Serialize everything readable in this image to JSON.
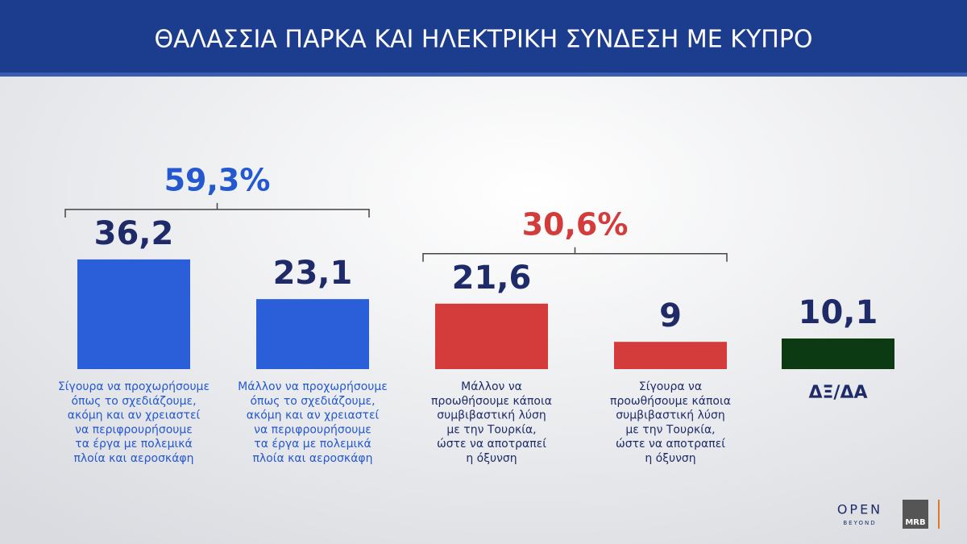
{
  "header": {
    "title": "ΘΑΛΑΣΣΙΑ ΠΑΡΚΑ ΚΑΙ ΗΛΕΚΤΡΙΚΗ ΣΥΝΔΕΣΗ ΜΕ ΚΥΠΡΟ"
  },
  "chart_data": {
    "type": "bar",
    "categories": [
      [
        "Σίγουρα να προχωρήσουμε",
        "όπως το σχεδιάζουμε,",
        "ακόμη και αν χρειαστεί",
        "να περιφρουρήσουμε",
        "τα έργα με πολεμικά",
        "πλοία και αεροσκάφη"
      ],
      [
        "Μάλλον να προχωρήσουμε",
        "όπως το σχεδιάζουμε,",
        "ακόμη και αν χρειαστεί",
        "να περιφρουρήσουμε",
        "τα έργα με πολεμικά",
        "πλοία και αεροσκάφη"
      ],
      [
        "Μάλλον να",
        "προωθήσουμε κάποια",
        "συμβιβαστική λύση",
        "με την Τουρκία,",
        "ώστε να αποτραπεί",
        "η όξυνση"
      ],
      [
        "Σίγουρα να",
        "προωθήσουμε κάποια",
        "συμβιβαστική λύση",
        "με την Τουρκία,",
        "ώστε να αποτραπεί",
        "η όξυνση"
      ],
      [
        "ΔΞ/ΔΑ"
      ]
    ],
    "values": [
      36.2,
      23.1,
      21.6,
      9,
      10.1
    ],
    "value_labels": [
      "36,2",
      "23,1",
      "21,6",
      "9",
      "10,1"
    ],
    "colors": [
      "#2b5fd9",
      "#2b5fd9",
      "#d43b3b",
      "#d43b3b",
      "#0c3a12"
    ],
    "label_colors": [
      "#2458d0",
      "#2458d0",
      "#1e2b68",
      "#1e2b68",
      "#1e2b68"
    ],
    "groups": [
      {
        "value": 59.3,
        "label": "59,3%",
        "members": [
          0,
          1
        ],
        "color": "#2458d0"
      },
      {
        "value": 30.6,
        "label": "30,6%",
        "members": [
          2,
          3
        ],
        "color": "#d43b3b"
      }
    ]
  },
  "branding": {
    "network": "OPEN",
    "tagline": "BEYOND",
    "pollster": "MRB"
  }
}
